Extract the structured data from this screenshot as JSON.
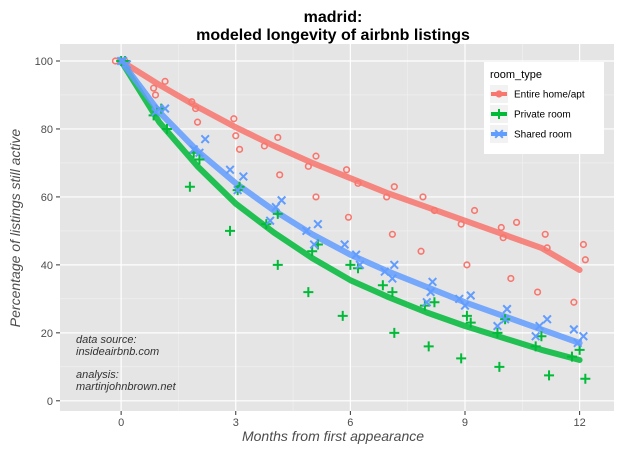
{
  "chart_data": {
    "type": "scatter",
    "title_lines": [
      "madrid:",
      "modeled longevity of airbnb listings"
    ],
    "xlabel": "Months from first appearance",
    "ylabel": "Percentage of listings still active",
    "xlim": [
      -1.6,
      12.9
    ],
    "ylim": [
      -3,
      105
    ],
    "x_ticks": [
      0,
      3,
      6,
      9,
      12
    ],
    "x_tick_labels": [
      "0",
      "3",
      "6",
      "9",
      "12"
    ],
    "y_ticks": [
      0,
      20,
      40,
      60,
      80,
      100
    ],
    "y_tick_labels": [
      "0",
      "20",
      "40",
      "60",
      "80",
      "100"
    ],
    "grid": true,
    "legend": {
      "title": "room_type",
      "placement": "top-right",
      "entries": [
        "Entire home/apt",
        "Private room",
        "Shared room"
      ]
    },
    "annotations": {
      "source_label": "data source:",
      "source_value": "insideairbnb.com",
      "analysis_label": "analysis:",
      "analysis_value": "martinjohnbrown.net"
    },
    "series": [
      {
        "name": "Entire home/apt",
        "color": "#F8766D",
        "marker": "circle",
        "fit": [
          [
            0,
            100
          ],
          [
            1,
            93
          ],
          [
            2,
            86.5
          ],
          [
            3,
            80.5
          ],
          [
            4,
            75
          ],
          [
            5,
            70
          ],
          [
            6,
            65.5
          ],
          [
            7,
            61
          ],
          [
            8,
            57
          ],
          [
            9,
            53
          ],
          [
            10,
            49
          ],
          [
            11,
            45
          ],
          [
            12,
            38.5
          ]
        ],
        "points": [
          [
            -0.15,
            100
          ],
          [
            0,
            100
          ],
          [
            0.1,
            100
          ],
          [
            0.85,
            92
          ],
          [
            0.9,
            90
          ],
          [
            1.15,
            94
          ],
          [
            1.85,
            88
          ],
          [
            1.95,
            86
          ],
          [
            2,
            82
          ],
          [
            2.95,
            83
          ],
          [
            3,
            78
          ],
          [
            3.1,
            74
          ],
          [
            3.75,
            75
          ],
          [
            4.1,
            77.5
          ],
          [
            4.15,
            66.5
          ],
          [
            4.9,
            69
          ],
          [
            5.1,
            72
          ],
          [
            5.1,
            60
          ],
          [
            5.9,
            68
          ],
          [
            5.95,
            54
          ],
          [
            6.2,
            64
          ],
          [
            6.95,
            60
          ],
          [
            7.15,
            63
          ],
          [
            7.1,
            49
          ],
          [
            7.9,
            60
          ],
          [
            7.85,
            44
          ],
          [
            8.2,
            56
          ],
          [
            8.9,
            52
          ],
          [
            9.05,
            40
          ],
          [
            9.25,
            56
          ],
          [
            9.95,
            51
          ],
          [
            10,
            48
          ],
          [
            10.2,
            36
          ],
          [
            10.35,
            52.5
          ],
          [
            10.9,
            32
          ],
          [
            11.1,
            49
          ],
          [
            11.15,
            45
          ],
          [
            11.85,
            29
          ],
          [
            12.1,
            46
          ],
          [
            12.15,
            41.5
          ]
        ]
      },
      {
        "name": "Private room",
        "color": "#00BA38",
        "marker": "plus",
        "fit": [
          [
            0,
            100
          ],
          [
            1,
            82
          ],
          [
            2,
            69
          ],
          [
            3,
            58
          ],
          [
            4,
            49.5
          ],
          [
            5,
            42
          ],
          [
            6,
            35.5
          ],
          [
            7,
            30.5
          ],
          [
            8,
            26
          ],
          [
            9,
            22
          ],
          [
            10,
            18.5
          ],
          [
            11,
            15
          ],
          [
            12,
            12
          ]
        ],
        "points": [
          [
            0,
            100
          ],
          [
            0.1,
            100
          ],
          [
            0.85,
            84
          ],
          [
            1.05,
            86
          ],
          [
            1.2,
            80
          ],
          [
            1.8,
            63
          ],
          [
            1.9,
            73
          ],
          [
            2.05,
            71
          ],
          [
            2.85,
            50
          ],
          [
            3.05,
            62
          ],
          [
            3.1,
            63
          ],
          [
            3.8,
            52
          ],
          [
            4.1,
            40
          ],
          [
            4.1,
            55
          ],
          [
            4.9,
            32
          ],
          [
            5,
            44
          ],
          [
            5.15,
            46
          ],
          [
            5.8,
            25
          ],
          [
            6,
            40
          ],
          [
            6.2,
            39
          ],
          [
            6.85,
            34
          ],
          [
            7.1,
            32
          ],
          [
            7.15,
            20
          ],
          [
            7.95,
            28
          ],
          [
            8.05,
            16
          ],
          [
            8.2,
            29
          ],
          [
            8.9,
            12.5
          ],
          [
            9.05,
            25
          ],
          [
            9.15,
            23
          ],
          [
            9.85,
            20
          ],
          [
            9.9,
            10
          ],
          [
            10.05,
            24
          ],
          [
            10.85,
            16
          ],
          [
            11,
            19
          ],
          [
            11.2,
            7.5
          ],
          [
            11.8,
            13
          ],
          [
            12,
            15
          ],
          [
            12.15,
            6.5
          ]
        ]
      },
      {
        "name": "Shared room",
        "color": "#619CFF",
        "marker": "x",
        "fit": [
          [
            0,
            100
          ],
          [
            1,
            85
          ],
          [
            2,
            73.5
          ],
          [
            3,
            64
          ],
          [
            4,
            56
          ],
          [
            5,
            49
          ],
          [
            6,
            43
          ],
          [
            7,
            38
          ],
          [
            8,
            33.5
          ],
          [
            9,
            29
          ],
          [
            10,
            25
          ],
          [
            11,
            21
          ],
          [
            12,
            17
          ]
        ],
        "points": [
          [
            0,
            100
          ],
          [
            0.05,
            100
          ],
          [
            0.15,
            99
          ],
          [
            0.9,
            85
          ],
          [
            1,
            86
          ],
          [
            1.15,
            86
          ],
          [
            1.9,
            74
          ],
          [
            2.05,
            73
          ],
          [
            2.2,
            77
          ],
          [
            2.85,
            68
          ],
          [
            3.05,
            62
          ],
          [
            3.2,
            66
          ],
          [
            3.9,
            53
          ],
          [
            4.05,
            57
          ],
          [
            4.2,
            59
          ],
          [
            4.85,
            50
          ],
          [
            5.05,
            46
          ],
          [
            5.15,
            52
          ],
          [
            5.85,
            46
          ],
          [
            6.15,
            43
          ],
          [
            6.25,
            40
          ],
          [
            6.9,
            38
          ],
          [
            7.15,
            40
          ],
          [
            7.1,
            36
          ],
          [
            8,
            29
          ],
          [
            8.1,
            32
          ],
          [
            8.15,
            35
          ],
          [
            8.85,
            30
          ],
          [
            9,
            28
          ],
          [
            9.15,
            31
          ],
          [
            9.85,
            22
          ],
          [
            10.05,
            24
          ],
          [
            10.1,
            27
          ],
          [
            10.85,
            19
          ],
          [
            10.95,
            22
          ],
          [
            11.15,
            24
          ],
          [
            11.85,
            21
          ],
          [
            11.95,
            17
          ],
          [
            12.1,
            19
          ]
        ]
      }
    ]
  }
}
